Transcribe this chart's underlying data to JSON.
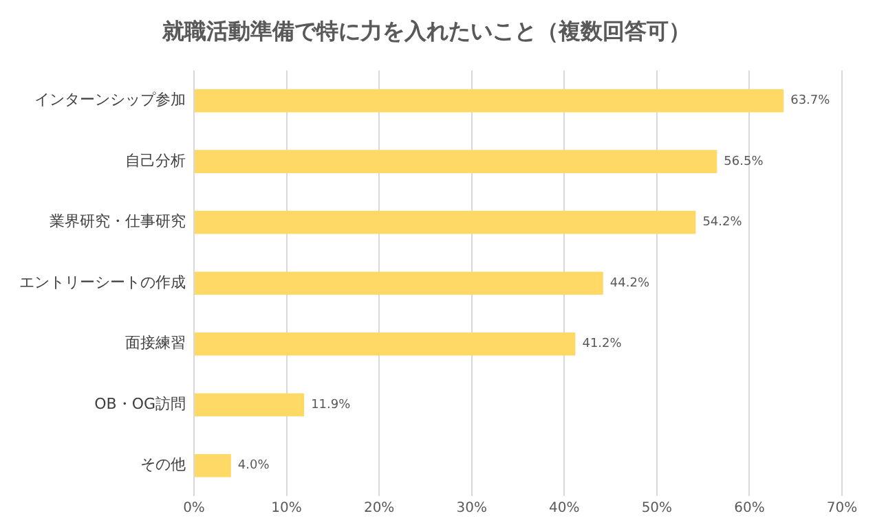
{
  "chart_data": {
    "type": "bar",
    "orientation": "horizontal",
    "title": "就職活動準備で特に力を入れたいこと（複数回答可）",
    "categories": [
      "インターンシップ参加",
      "自己分析",
      "業界研究・仕事研究",
      "エントリーシートの作成",
      "面接練習",
      "OB・OG訪問",
      "その他"
    ],
    "values": [
      63.7,
      56.5,
      54.2,
      44.2,
      41.2,
      11.9,
      4.0
    ],
    "value_labels": [
      "63.7%",
      "56.5%",
      "54.2%",
      "44.2%",
      "41.2%",
      "11.9%",
      "4.0%"
    ],
    "color": "#ffd966",
    "xlim": [
      0,
      70
    ],
    "xticks": [
      {
        "value": 0,
        "label": "0%"
      },
      {
        "value": 10,
        "label": "10%"
      },
      {
        "value": 20,
        "label": "20%"
      },
      {
        "value": 30,
        "label": "30%"
      },
      {
        "value": 40,
        "label": "40%"
      },
      {
        "value": 50,
        "label": "50%"
      },
      {
        "value": 60,
        "label": "60%"
      },
      {
        "value": 70,
        "label": "70%"
      }
    ],
    "grid": "x",
    "legend": false
  }
}
